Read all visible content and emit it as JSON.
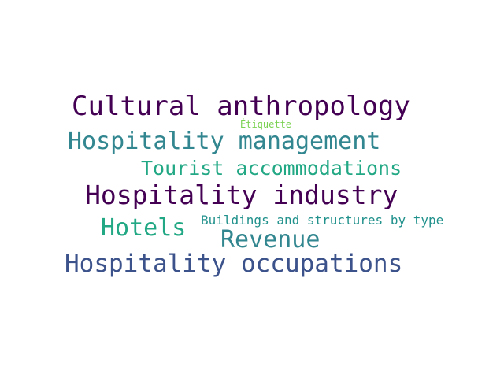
{
  "words": [
    {
      "text": "Cultural anthropology",
      "color": "#440154"
    },
    {
      "text": "Étiquette",
      "color": "#7ad151"
    },
    {
      "text": "Hospitality management",
      "color": "#31868f"
    },
    {
      "text": "Tourist accommodations",
      "color": "#22a884"
    },
    {
      "text": "Hospitality industry",
      "color": "#440154"
    },
    {
      "text": "Buildings and structures by type",
      "color": "#21918c"
    },
    {
      "text": "Hotels",
      "color": "#22a884"
    },
    {
      "text": "Revenue",
      "color": "#31868f"
    },
    {
      "text": "Hospitality occupations",
      "color": "#3b528b"
    }
  ]
}
